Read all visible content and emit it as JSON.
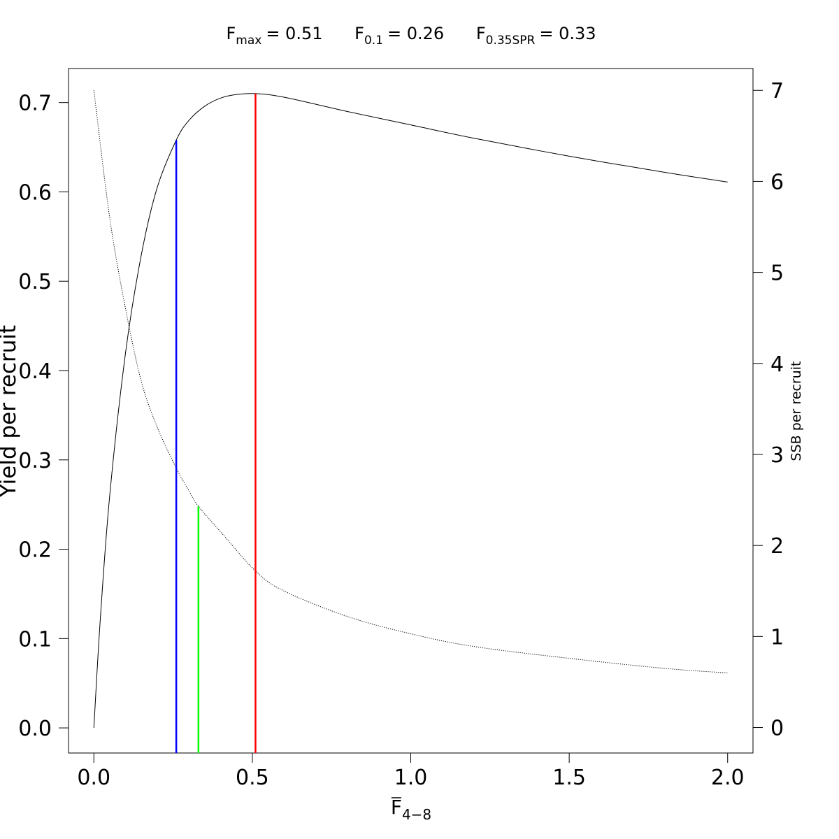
{
  "chart_data": {
    "type": "line",
    "title_refs": [
      {
        "base": "F",
        "sub": "max",
        "value": "= 0.51"
      },
      {
        "base": "F",
        "sub": "0.1",
        "value": "= 0.26"
      },
      {
        "base": "F",
        "sub": "0.35SPR",
        "value": "= 0.33"
      }
    ],
    "xlabel": {
      "base": "F",
      "sub": "4−8",
      "overbar": true
    },
    "ylabel_left": "Yield per recruit",
    "ylabel_right": "SSB per recruit",
    "xlim": [
      -0.08,
      2.08
    ],
    "ylim_left": [
      -0.0281,
      0.7381
    ],
    "ylim_right": [
      -0.28,
      7.24
    ],
    "x_ticks": [
      0,
      0.5,
      1,
      1.5,
      2
    ],
    "x_tick_labels": [
      "0.0",
      "0.5",
      "1.0",
      "1.5",
      "2.0"
    ],
    "y_left_ticks": [
      0,
      0.1,
      0.2,
      0.3,
      0.4,
      0.5,
      0.6,
      0.7
    ],
    "y_left_tick_labels": [
      "0.0",
      "0.1",
      "0.2",
      "0.3",
      "0.4",
      "0.5",
      "0.6",
      "0.7"
    ],
    "y_right_ticks": [
      0,
      1,
      2,
      3,
      4,
      5,
      6,
      7
    ],
    "y_right_tick_labels": [
      "0",
      "1",
      "2",
      "3",
      "4",
      "5",
      "6",
      "7"
    ],
    "series": [
      {
        "axis": "left",
        "style": "solid",
        "color": "#000000",
        "x": [
          0,
          0.02,
          0.05,
          0.1,
          0.15,
          0.2,
          0.26,
          0.3,
          0.35,
          0.4,
          0.45,
          0.51,
          0.6,
          0.8,
          1.0,
          1.2,
          1.5,
          1.8,
          2.0
        ],
        "y": [
          0,
          0.12,
          0.26,
          0.42,
          0.53,
          0.605,
          0.658,
          0.68,
          0.696,
          0.705,
          0.709,
          0.71,
          0.706,
          0.69,
          0.675,
          0.66,
          0.64,
          0.622,
          0.611
        ]
      },
      {
        "axis": "right",
        "style": "dotted",
        "color": "#000000",
        "x": [
          0,
          0.05,
          0.1,
          0.15,
          0.2,
          0.26,
          0.3,
          0.33,
          0.4,
          0.51,
          0.6,
          0.8,
          1.0,
          1.2,
          1.5,
          1.8,
          2.0
        ],
        "y": [
          7.0,
          5.6,
          4.6,
          3.8,
          3.3,
          2.85,
          2.6,
          2.43,
          2.15,
          1.72,
          1.5,
          1.22,
          1.03,
          0.89,
          0.76,
          0.65,
          0.6
        ]
      }
    ],
    "reference_lines": [
      {
        "name": "F0.1",
        "x": 0.26,
        "y_top": 0.658,
        "axis": "left",
        "color": "#0000ff"
      },
      {
        "name": "F0.35SPR",
        "x": 0.33,
        "y_top": 2.43,
        "axis": "right",
        "color": "#00ff00"
      },
      {
        "name": "Fmax",
        "x": 0.51,
        "y_top": 0.71,
        "axis": "left",
        "color": "#ff0000"
      }
    ]
  }
}
